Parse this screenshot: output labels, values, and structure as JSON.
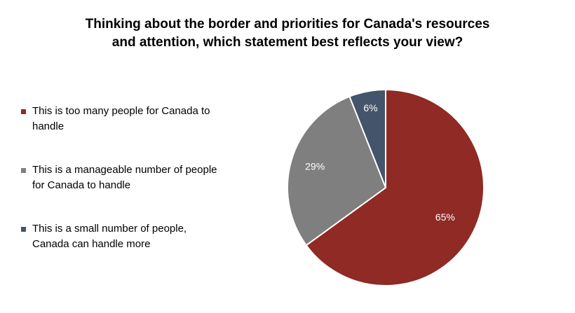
{
  "chart_data": {
    "type": "pie",
    "title_lines": [
      "Thinking about the border and priorities for Canada's resources",
      "and attention, which statement best reflects your view?"
    ],
    "slices": [
      {
        "label": "This is too many people for Canada to handle",
        "value": 65,
        "display": "65%",
        "color": "#8f2a24"
      },
      {
        "label": "This is a manageable number of people for Canada to handle",
        "value": 29,
        "display": "29%",
        "color": "#7f7f7f"
      },
      {
        "label": "This is a small number of people, Canada can handle more",
        "value": 6,
        "display": "6%",
        "color": "#44546a"
      }
    ],
    "legend_position": "left",
    "start_angle_deg": 0,
    "direction": "clockwise"
  }
}
